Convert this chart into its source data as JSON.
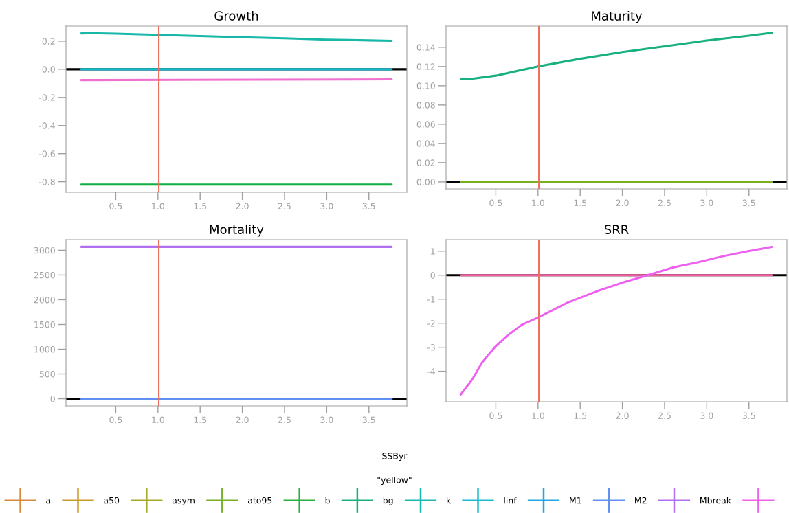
{
  "chart_data": [
    {
      "type": "line",
      "title": "Growth",
      "xlim": [
        -0.09,
        3.95
      ],
      "xticks": [
        0.5,
        {
          "value": 1,
          "label": "1.0"
        },
        1.5,
        {
          "value": 2,
          "label": "2.0"
        },
        2.5,
        {
          "value": 3,
          "label": "3.0"
        },
        3.5
      ],
      "ylim": [
        -0.875,
        0.307
      ],
      "yticks": [
        {
          "value": 0.2,
          "label": "0.2"
        },
        {
          "value": 0.0,
          "label": "0.0"
        },
        {
          "value": -0.2,
          "label": "-0.2"
        },
        {
          "value": -0.4,
          "label": "-0.4"
        },
        {
          "value": -0.6,
          "label": "-0.6"
        },
        {
          "value": -0.8,
          "label": "-0.8"
        }
      ],
      "grid": false,
      "legend": false,
      "ref_lines": [
        {
          "axis": "y",
          "value": 0,
          "color": "#000000"
        },
        {
          "axis": "x",
          "value": 1.01,
          "color": "#f07060"
        }
      ],
      "series": [
        {
          "color": "#18b8a8",
          "x": [
            0.09,
            0.2,
            0.5,
            1.0,
            1.5,
            2.0,
            2.5,
            3.0,
            3.5,
            3.77
          ],
          "values": [
            0.255,
            0.257,
            0.253,
            0.245,
            0.236,
            0.228,
            0.22,
            0.211,
            0.205,
            0.202
          ]
        },
        {
          "color": "#18bcd0",
          "x": [
            0.09,
            3.77
          ],
          "values": [
            0,
            0
          ]
        },
        {
          "color": "#f070d0",
          "x": [
            0.09,
            3.77
          ],
          "values": [
            -0.077,
            -0.072
          ]
        },
        {
          "color": "#10b040",
          "x": [
            0.09,
            3.77
          ],
          "values": [
            -0.82,
            -0.82
          ]
        }
      ]
    },
    {
      "type": "line",
      "title": "Maturity",
      "xlim": [
        -0.09,
        3.95
      ],
      "xticks": [
        0.5,
        {
          "value": 1,
          "label": "1.0"
        },
        1.5,
        {
          "value": 2,
          "label": "2.0"
        },
        2.5,
        {
          "value": 3,
          "label": "3.0"
        },
        3.5
      ],
      "ylim": [
        -0.0072,
        0.162
      ],
      "yticks": [
        {
          "value": 0,
          "label": "0.00"
        },
        {
          "value": 0.02,
          "label": "0.02"
        },
        {
          "value": 0.04,
          "label": "0.04"
        },
        {
          "value": 0.06,
          "label": "0.06"
        },
        {
          "value": 0.08,
          "label": "0.08"
        },
        {
          "value": 0.1,
          "label": "0.10"
        },
        {
          "value": 0.12,
          "label": "0.12"
        },
        {
          "value": 0.14,
          "label": "0.14"
        }
      ],
      "grid": false,
      "legend": false,
      "ref_lines": [
        {
          "axis": "y",
          "value": 0,
          "color": "#000000"
        },
        {
          "axis": "x",
          "value": 1.01,
          "color": "#f07060"
        }
      ],
      "series": [
        {
          "color": "#18b080",
          "x": [
            0.09,
            0.2,
            0.5,
            1.0,
            1.5,
            2.0,
            2.5,
            3.0,
            3.5,
            3.77
          ],
          "values": [
            0.107,
            0.107,
            0.1105,
            0.12,
            0.128,
            0.135,
            0.141,
            0.147,
            0.152,
            0.155
          ]
        },
        {
          "color": "#78b020",
          "x": [
            0.09,
            3.77
          ],
          "values": [
            0,
            0
          ]
        }
      ]
    },
    {
      "type": "line",
      "title": "Mortality",
      "xlim": [
        -0.09,
        3.95
      ],
      "xticks": [
        0.5,
        {
          "value": 1,
          "label": "1.0"
        },
        1.5,
        {
          "value": 2,
          "label": "2.0"
        },
        2.5,
        {
          "value": 3,
          "label": "3.0"
        },
        3.5
      ],
      "ylim": [
        -145,
        3214
      ],
      "yticks": [
        0,
        500,
        1000,
        1500,
        2000,
        2500,
        3000
      ],
      "grid": false,
      "legend": false,
      "ref_lines": [
        {
          "axis": "y",
          "value": 0,
          "color": "#000000"
        },
        {
          "axis": "x",
          "value": 1.01,
          "color": "#f07060"
        }
      ],
      "series": [
        {
          "color": "#b070f0",
          "x": [
            0.09,
            3.77
          ],
          "values": [
            3070,
            3070
          ]
        },
        {
          "color": "#6090f0",
          "x": [
            0.09,
            3.77
          ],
          "values": [
            0,
            0
          ]
        }
      ]
    },
    {
      "type": "line",
      "title": "SRR",
      "xlim": [
        -0.09,
        3.95
      ],
      "xticks": [
        0.5,
        {
          "value": 1,
          "label": "1.0"
        },
        1.5,
        {
          "value": 2,
          "label": "2.0"
        },
        2.5,
        {
          "value": 3,
          "label": "3.0"
        },
        3.5
      ],
      "ylim": [
        -5.27,
        1.48
      ],
      "yticks": [
        -4,
        -3,
        -2,
        -1,
        0,
        1
      ],
      "grid": false,
      "legend": false,
      "ref_lines": [
        {
          "axis": "y",
          "value": 0,
          "color": "#000000"
        },
        {
          "axis": "x",
          "value": 1.01,
          "color": "#f07060"
        }
      ],
      "series": [
        {
          "color": "#f060a0",
          "x": [
            0.09,
            3.77
          ],
          "values": [
            0,
            0
          ]
        },
        {
          "color": "#ee60f0",
          "x": [
            0.083,
            0.217,
            0.336,
            0.485,
            0.634,
            0.81,
            1.0,
            1.35,
            1.705,
            2.0,
            2.3,
            2.6,
            2.9,
            3.19,
            3.49,
            3.77
          ],
          "values": [
            -4.97,
            -4.36,
            -3.64,
            -3.01,
            -2.52,
            -2.06,
            -1.76,
            -1.14,
            -0.66,
            -0.31,
            0,
            0.32,
            0.54,
            0.79,
            1.0,
            1.18
          ]
        }
      ]
    },
    {
      "type": "other",
      "xlabel": "SSByr",
      "legend_title": "\"yellow\"",
      "legend": "bottom",
      "series": [
        {
          "name": "a",
          "color": "#d8883a"
        },
        {
          "name": "a50",
          "color": "#c89b2a"
        },
        {
          "name": "asym",
          "color": "#a8a828"
        },
        {
          "name": "ato95",
          "color": "#78b02a"
        },
        {
          "name": "b",
          "color": "#28b040"
        },
        {
          "name": "bg",
          "color": "#18b080"
        },
        {
          "name": "k",
          "color": "#18b8b0"
        },
        {
          "name": "linf",
          "color": "#18bcd0"
        },
        {
          "name": "M1",
          "color": "#20a8e0"
        },
        {
          "name": "M2",
          "color": "#6090f0"
        },
        {
          "name": "Mbreak",
          "color": "#b070f0"
        },
        {
          "color": "#f060e8"
        }
      ]
    }
  ]
}
